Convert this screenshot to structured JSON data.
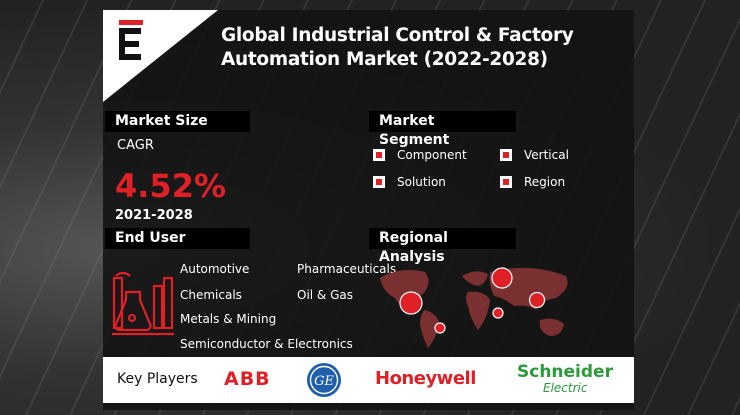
{
  "header": {
    "title_line1": "Global Industrial Control & Factory",
    "title_line2": "Automation Market (2022-2028)"
  },
  "market_size": {
    "label": "Market Size",
    "cagr_label": "CAGR",
    "cagr_value": "4.52%",
    "period": "2021-2028"
  },
  "market_segment": {
    "label": "Market Segment",
    "items": [
      "Component",
      "Vertical",
      "Solution",
      "Region"
    ]
  },
  "end_user": {
    "label": "End User",
    "items": [
      "Automotive",
      "Pharmaceuticals",
      "Chemicals",
      "Oil & Gas",
      "Metals & Mining",
      "Semiconductor & Electronics"
    ]
  },
  "regional": {
    "label": "Regional Analysis"
  },
  "key_players": {
    "label": "Key Players",
    "players": [
      "ABB",
      "GE",
      "Honeywell",
      "Schneider",
      "Electric"
    ]
  },
  "colors": {
    "accent": "#e02027",
    "panel": "#121212",
    "schneider": "#2a9b3a"
  }
}
